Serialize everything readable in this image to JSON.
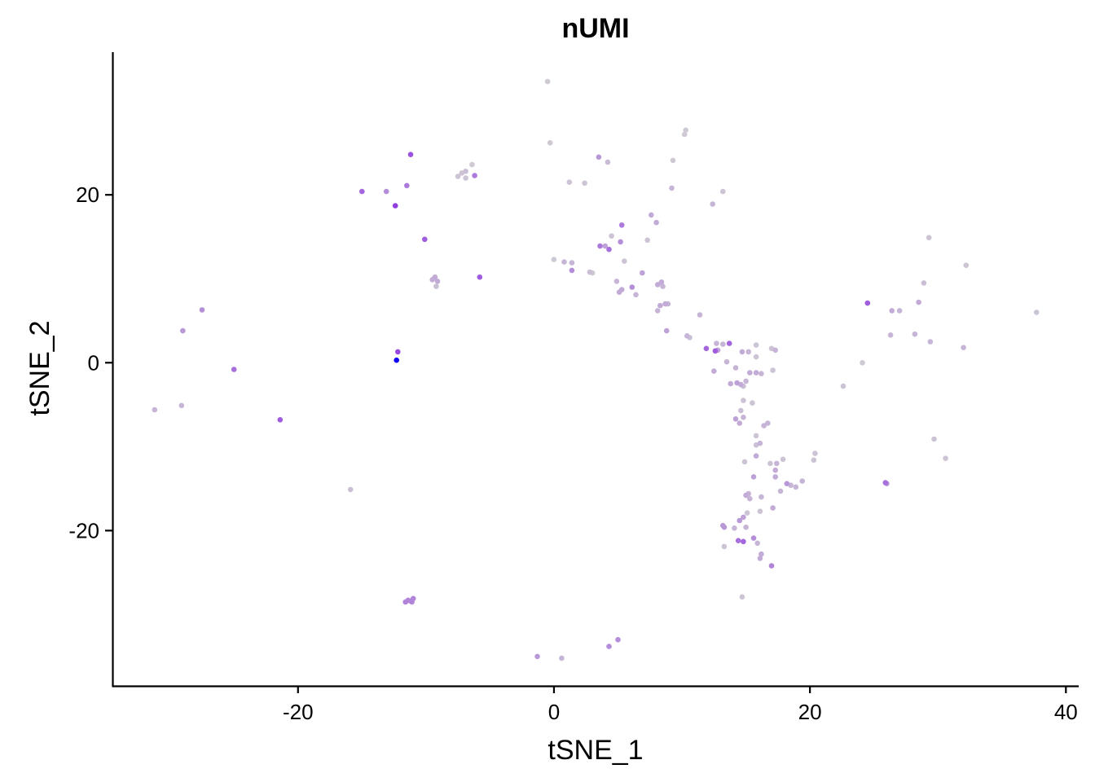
{
  "chart_data": {
    "type": "scatter",
    "title": "nUMI",
    "xlabel": "tSNE_1",
    "ylabel": "tSNE_2",
    "xlim": [
      -34.5,
      41
    ],
    "ylim": [
      -38.5,
      37
    ],
    "xticks": [
      -20,
      0,
      20,
      40
    ],
    "yticks": [
      -20,
      0,
      20
    ],
    "x_tick_labels": [
      "-20",
      "0",
      "20",
      "40"
    ],
    "y_tick_labels": [
      "-20",
      "0",
      "20"
    ],
    "grid": false,
    "legend": "none",
    "color_scale": {
      "low": "#d3d3d3",
      "high": "#0000ff"
    },
    "points": [
      {
        "x": -0.5,
        "y": 33.5,
        "c": 0.05
      },
      {
        "x": -0.3,
        "y": 26.2,
        "c": 0.05
      },
      {
        "x": 10.3,
        "y": 27.7,
        "c": 0.05
      },
      {
        "x": 10.2,
        "y": 27.2,
        "c": 0.05
      },
      {
        "x": 9.3,
        "y": 24.1,
        "c": 0.05
      },
      {
        "x": 3.5,
        "y": 24.5,
        "c": 0.3
      },
      {
        "x": 4.2,
        "y": 23.9,
        "c": 0.12
      },
      {
        "x": 1.2,
        "y": 21.5,
        "c": 0.08
      },
      {
        "x": 2.4,
        "y": 21.4,
        "c": 0.08
      },
      {
        "x": 9.2,
        "y": 20.8,
        "c": 0.15
      },
      {
        "x": 13.2,
        "y": 20.4,
        "c": 0.08
      },
      {
        "x": 12.4,
        "y": 18.9,
        "c": 0.15
      },
      {
        "x": -11.2,
        "y": 24.8,
        "c": 0.65
      },
      {
        "x": -11.5,
        "y": 21.1,
        "c": 0.45
      },
      {
        "x": -15.0,
        "y": 20.4,
        "c": 0.55
      },
      {
        "x": -13.1,
        "y": 20.4,
        "c": 0.35
      },
      {
        "x": -12.4,
        "y": 18.7,
        "c": 0.75
      },
      {
        "x": -10.1,
        "y": 14.7,
        "c": 0.6
      },
      {
        "x": -5.8,
        "y": 10.2,
        "c": 0.6
      },
      {
        "x": -9.3,
        "y": 10.2,
        "c": 0.2
      },
      {
        "x": -9.5,
        "y": 9.9,
        "c": 0.2
      },
      {
        "x": -9.1,
        "y": 9.7,
        "c": 0.2
      },
      {
        "x": -9.2,
        "y": 9.1,
        "c": 0.1
      },
      {
        "x": -6.4,
        "y": 23.6,
        "c": 0.05
      },
      {
        "x": -6.9,
        "y": 22.8,
        "c": 0.1
      },
      {
        "x": -7.2,
        "y": 22.6,
        "c": 0.08
      },
      {
        "x": -7.5,
        "y": 22.2,
        "c": 0.08
      },
      {
        "x": -6.9,
        "y": 22.0,
        "c": 0.08
      },
      {
        "x": -6.2,
        "y": 22.3,
        "c": 0.45
      },
      {
        "x": 7.6,
        "y": 17.6,
        "c": 0.2
      },
      {
        "x": 8.0,
        "y": 16.7,
        "c": 0.2
      },
      {
        "x": 5.3,
        "y": 16.4,
        "c": 0.45
      },
      {
        "x": 4.5,
        "y": 15.1,
        "c": 0.08
      },
      {
        "x": 7.3,
        "y": 14.6,
        "c": 0.08
      },
      {
        "x": 5.2,
        "y": 14.4,
        "c": 0.35
      },
      {
        "x": 3.6,
        "y": 13.9,
        "c": 0.45
      },
      {
        "x": 4.0,
        "y": 13.9,
        "c": 0.25
      },
      {
        "x": 4.3,
        "y": 13.5,
        "c": 0.5
      },
      {
        "x": 0.0,
        "y": 12.3,
        "c": 0.05
      },
      {
        "x": 0.8,
        "y": 12.0,
        "c": 0.15
      },
      {
        "x": 1.4,
        "y": 11.9,
        "c": 0.15
      },
      {
        "x": 5.5,
        "y": 12.1,
        "c": 0.08
      },
      {
        "x": 1.4,
        "y": 11.0,
        "c": 0.35
      },
      {
        "x": 2.8,
        "y": 10.8,
        "c": 0.1
      },
      {
        "x": 3.0,
        "y": 10.7,
        "c": 0.05
      },
      {
        "x": 6.9,
        "y": 10.7,
        "c": 0.25
      },
      {
        "x": 4.9,
        "y": 9.7,
        "c": 0.15
      },
      {
        "x": 8.4,
        "y": 9.6,
        "c": 0.2
      },
      {
        "x": 8.1,
        "y": 9.3,
        "c": 0.2
      },
      {
        "x": 8.5,
        "y": 9.1,
        "c": 0.15
      },
      {
        "x": 6.1,
        "y": 9.0,
        "c": 0.35
      },
      {
        "x": 5.3,
        "y": 8.7,
        "c": 0.2
      },
      {
        "x": 5.1,
        "y": 8.4,
        "c": 0.2
      },
      {
        "x": 6.4,
        "y": 8.1,
        "c": 0.15
      },
      {
        "x": 8.7,
        "y": 7.0,
        "c": 0.2
      },
      {
        "x": 8.3,
        "y": 6.8,
        "c": 0.2
      },
      {
        "x": 8.9,
        "y": 7.0,
        "c": 0.15
      },
      {
        "x": 8.1,
        "y": 6.2,
        "c": 0.15
      },
      {
        "x": 11.4,
        "y": 5.7,
        "c": 0.15
      },
      {
        "x": 8.8,
        "y": 3.8,
        "c": 0.25
      },
      {
        "x": 10.4,
        "y": 3.2,
        "c": 0.15
      },
      {
        "x": 10.6,
        "y": 3.0,
        "c": 0.1
      },
      {
        "x": 12.7,
        "y": 2.3,
        "c": 0.15
      },
      {
        "x": 13.2,
        "y": 2.2,
        "c": 0.15
      },
      {
        "x": 13.7,
        "y": 2.3,
        "c": 0.55
      },
      {
        "x": 15.8,
        "y": 2.1,
        "c": 0.08
      },
      {
        "x": 17.0,
        "y": 1.7,
        "c": 0.08
      },
      {
        "x": 17.3,
        "y": 1.5,
        "c": 0.15
      },
      {
        "x": 11.9,
        "y": 1.7,
        "c": 0.55
      },
      {
        "x": 12.6,
        "y": 1.4,
        "c": 0.6
      },
      {
        "x": 12.8,
        "y": 1.5,
        "c": 0.25
      },
      {
        "x": 14.7,
        "y": 1.3,
        "c": 0.2
      },
      {
        "x": 15.2,
        "y": 1.3,
        "c": 0.15
      },
      {
        "x": 15.8,
        "y": 0.7,
        "c": 0.08
      },
      {
        "x": 13.5,
        "y": 0.1,
        "c": 0.15
      },
      {
        "x": 12.5,
        "y": -1.0,
        "c": 0.2
      },
      {
        "x": 14.2,
        "y": -0.6,
        "c": 0.15
      },
      {
        "x": 15.3,
        "y": -1.2,
        "c": 0.2
      },
      {
        "x": 15.8,
        "y": -1.2,
        "c": 0.2
      },
      {
        "x": 16.2,
        "y": -1.3,
        "c": 0.15
      },
      {
        "x": 17.1,
        "y": -0.9,
        "c": 0.08
      },
      {
        "x": 13.8,
        "y": -2.5,
        "c": 0.2
      },
      {
        "x": 14.3,
        "y": -2.4,
        "c": 0.25
      },
      {
        "x": 14.6,
        "y": -2.6,
        "c": 0.2
      },
      {
        "x": 15.0,
        "y": -2.2,
        "c": 0.15
      },
      {
        "x": 14.8,
        "y": -2.8,
        "c": 0.1
      },
      {
        "x": 14.8,
        "y": -4.5,
        "c": 0.08
      },
      {
        "x": 15.5,
        "y": -4.8,
        "c": 0.08
      },
      {
        "x": 14.6,
        "y": -5.7,
        "c": 0.1
      },
      {
        "x": 14.2,
        "y": -6.7,
        "c": 0.25
      },
      {
        "x": 14.8,
        "y": -6.5,
        "c": 0.15
      },
      {
        "x": 14.5,
        "y": -7.2,
        "c": 0.2
      },
      {
        "x": 16.7,
        "y": -7.2,
        "c": 0.15
      },
      {
        "x": 16.4,
        "y": -7.5,
        "c": 0.15
      },
      {
        "x": 15.8,
        "y": -8.7,
        "c": 0.08
      },
      {
        "x": 16.1,
        "y": -9.6,
        "c": 0.15
      },
      {
        "x": 15.8,
        "y": -9.8,
        "c": 0.1
      },
      {
        "x": 15.8,
        "y": -11.1,
        "c": 0.2
      },
      {
        "x": 20.4,
        "y": -10.8,
        "c": 0.08
      },
      {
        "x": 20.3,
        "y": -11.6,
        "c": 0.08
      },
      {
        "x": 17.9,
        "y": -11.5,
        "c": 0.08
      },
      {
        "x": 14.9,
        "y": -11.8,
        "c": 0.08
      },
      {
        "x": 16.9,
        "y": -12.0,
        "c": 0.08
      },
      {
        "x": 17.4,
        "y": -12.0,
        "c": 0.15
      },
      {
        "x": 17.3,
        "y": -12.8,
        "c": 0.2
      },
      {
        "x": 15.6,
        "y": -13.6,
        "c": 0.25
      },
      {
        "x": 17.3,
        "y": -13.6,
        "c": 0.2
      },
      {
        "x": 18.2,
        "y": -14.4,
        "c": 0.3
      },
      {
        "x": 18.5,
        "y": -14.6,
        "c": 0.15
      },
      {
        "x": 18.9,
        "y": -14.8,
        "c": 0.15
      },
      {
        "x": 19.4,
        "y": -14.1,
        "c": 0.15
      },
      {
        "x": 17.7,
        "y": -15.3,
        "c": 0.15
      },
      {
        "x": 15.2,
        "y": -15.6,
        "c": 0.15
      },
      {
        "x": 15.0,
        "y": -15.8,
        "c": 0.2
      },
      {
        "x": 15.3,
        "y": -16.2,
        "c": 0.15
      },
      {
        "x": 16.2,
        "y": -16.0,
        "c": 0.15
      },
      {
        "x": 17.1,
        "y": -17.3,
        "c": 0.2
      },
      {
        "x": 16.1,
        "y": -17.7,
        "c": 0.08
      },
      {
        "x": 15.1,
        "y": -17.9,
        "c": 0.08
      },
      {
        "x": 14.8,
        "y": -18.4,
        "c": 0.25
      },
      {
        "x": 14.5,
        "y": -18.8,
        "c": 0.3
      },
      {
        "x": 13.2,
        "y": -19.4,
        "c": 0.3
      },
      {
        "x": 13.3,
        "y": -19.6,
        "c": 0.3
      },
      {
        "x": 15.0,
        "y": -19.6,
        "c": 0.15
      },
      {
        "x": 14.1,
        "y": -19.7,
        "c": 0.15
      },
      {
        "x": 15.6,
        "y": -20.9,
        "c": 0.35
      },
      {
        "x": 14.4,
        "y": -21.2,
        "c": 0.5
      },
      {
        "x": 14.8,
        "y": -21.3,
        "c": 0.55
      },
      {
        "x": 15.9,
        "y": -21.5,
        "c": 0.15
      },
      {
        "x": 13.3,
        "y": -21.9,
        "c": 0.08
      },
      {
        "x": 16.2,
        "y": -22.8,
        "c": 0.2
      },
      {
        "x": 16.1,
        "y": -23.3,
        "c": 0.2
      },
      {
        "x": 17.0,
        "y": -24.2,
        "c": 0.4
      },
      {
        "x": 14.7,
        "y": -27.9,
        "c": 0.08
      },
      {
        "x": 22.6,
        "y": -2.8,
        "c": 0.08
      },
      {
        "x": 24.1,
        "y": 0.0,
        "c": 0.05
      },
      {
        "x": 24.5,
        "y": 7.1,
        "c": 0.6
      },
      {
        "x": 26.4,
        "y": 6.2,
        "c": 0.2
      },
      {
        "x": 27.0,
        "y": 6.2,
        "c": 0.15
      },
      {
        "x": 28.5,
        "y": 7.2,
        "c": 0.2
      },
      {
        "x": 28.9,
        "y": 9.5,
        "c": 0.1
      },
      {
        "x": 29.3,
        "y": 14.9,
        "c": 0.08
      },
      {
        "x": 32.2,
        "y": 11.6,
        "c": 0.08
      },
      {
        "x": 37.7,
        "y": 6.0,
        "c": 0.08
      },
      {
        "x": 26.3,
        "y": 3.3,
        "c": 0.15
      },
      {
        "x": 28.2,
        "y": 3.4,
        "c": 0.15
      },
      {
        "x": 29.4,
        "y": 2.5,
        "c": 0.15
      },
      {
        "x": 32.0,
        "y": 1.8,
        "c": 0.15
      },
      {
        "x": 29.7,
        "y": -9.1,
        "c": 0.08
      },
      {
        "x": 30.6,
        "y": -11.4,
        "c": 0.08
      },
      {
        "x": 25.9,
        "y": -14.3,
        "c": 0.5
      },
      {
        "x": 26.0,
        "y": -14.4,
        "c": 0.3
      },
      {
        "x": -12.2,
        "y": 1.3,
        "c": 0.7
      },
      {
        "x": -12.3,
        "y": 0.3,
        "c": 0.98
      },
      {
        "x": -25.0,
        "y": -0.8,
        "c": 0.5
      },
      {
        "x": -27.5,
        "y": 6.3,
        "c": 0.35
      },
      {
        "x": -29.0,
        "y": 3.8,
        "c": 0.3
      },
      {
        "x": -29.1,
        "y": -5.1,
        "c": 0.15
      },
      {
        "x": -31.2,
        "y": -5.6,
        "c": 0.15
      },
      {
        "x": -21.4,
        "y": -6.8,
        "c": 0.6
      },
      {
        "x": -15.9,
        "y": -15.1,
        "c": 0.1
      },
      {
        "x": -11.4,
        "y": -28.3,
        "c": 0.4
      },
      {
        "x": -11.2,
        "y": -28.4,
        "c": 0.4
      },
      {
        "x": -11.0,
        "y": -28.1,
        "c": 0.4
      },
      {
        "x": -11.6,
        "y": -28.5,
        "c": 0.4
      },
      {
        "x": -11.1,
        "y": -28.5,
        "c": 0.35
      },
      {
        "x": -1.3,
        "y": -35.0,
        "c": 0.3
      },
      {
        "x": 0.6,
        "y": -35.2,
        "c": 0.15
      },
      {
        "x": 4.3,
        "y": -33.8,
        "c": 0.35
      },
      {
        "x": 5.0,
        "y": -33.0,
        "c": 0.35
      }
    ]
  }
}
